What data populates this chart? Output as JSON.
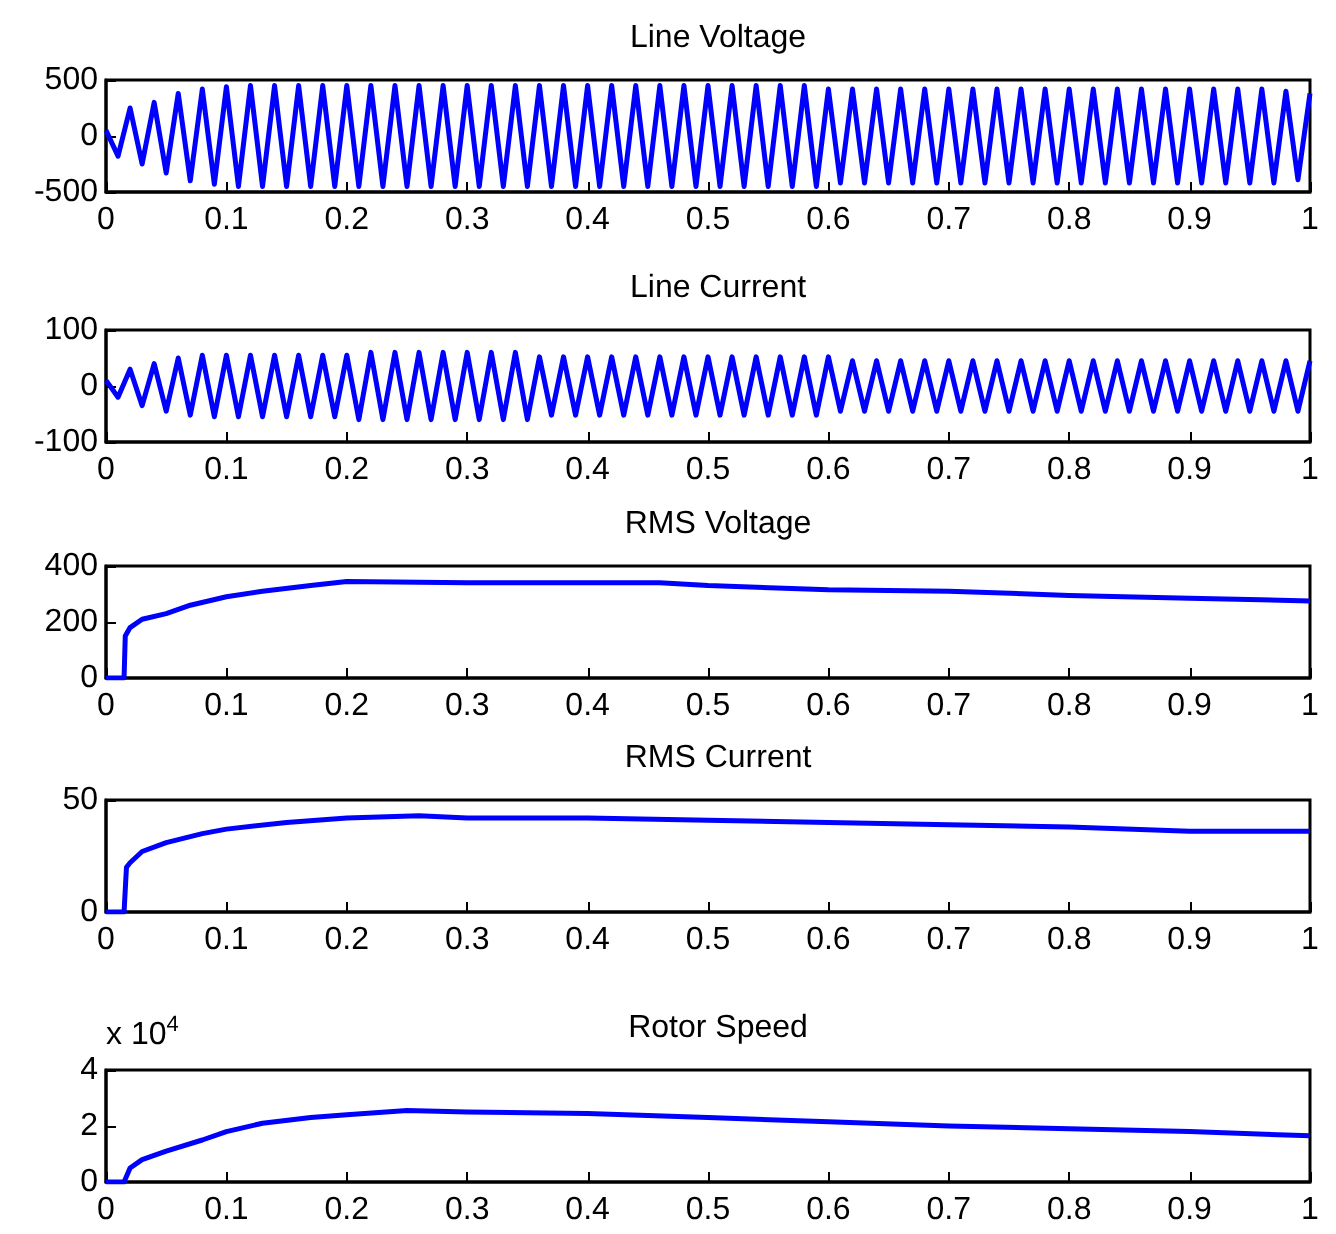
{
  "chart_data": [
    {
      "type": "line",
      "title": "Line Voltage",
      "color": "#0000ff",
      "xlim": [
        0,
        1
      ],
      "xticks": [
        0,
        0.1,
        0.2,
        0.3,
        0.4,
        0.5,
        0.6,
        0.7,
        0.8,
        0.9,
        1
      ],
      "ylim": [
        -500,
        500
      ],
      "yticks": [
        -500,
        0,
        500
      ],
      "x": [
        0,
        0.01,
        0.02,
        0.03,
        0.04,
        0.05,
        0.06,
        0.07,
        0.08,
        0.09,
        0.1,
        0.11,
        0.12,
        0.13,
        0.14,
        0.15,
        0.16,
        0.17,
        0.18,
        0.19,
        0.2,
        0.21,
        0.22,
        0.23,
        0.24,
        0.25,
        0.26,
        0.27,
        0.28,
        0.29,
        0.3,
        0.31,
        0.32,
        0.33,
        0.34,
        0.35,
        0.36,
        0.37,
        0.38,
        0.39,
        0.4,
        0.41,
        0.42,
        0.43,
        0.44,
        0.45,
        0.46,
        0.47,
        0.48,
        0.49,
        0.5,
        0.51,
        0.52,
        0.53,
        0.54,
        0.55,
        0.56,
        0.57,
        0.58,
        0.59,
        0.6,
        0.61,
        0.62,
        0.63,
        0.64,
        0.65,
        0.66,
        0.67,
        0.68,
        0.69,
        0.7,
        0.71,
        0.72,
        0.73,
        0.74,
        0.75,
        0.76,
        0.77,
        0.78,
        0.79,
        0.8,
        0.81,
        0.82,
        0.83,
        0.84,
        0.85,
        0.86,
        0.87,
        0.88,
        0.89,
        0.9,
        0.91,
        0.92,
        0.93,
        0.94,
        0.95,
        0.96,
        0.97,
        0.98,
        0.99,
        1
      ],
      "values": [
        50,
        -180,
        250,
        -250,
        300,
        -330,
        380,
        -400,
        420,
        -430,
        440,
        -450,
        450,
        -450,
        450,
        -450,
        450,
        -450,
        450,
        -450,
        450,
        -450,
        450,
        -450,
        450,
        -450,
        450,
        -450,
        450,
        -450,
        450,
        -450,
        450,
        -450,
        450,
        -450,
        450,
        -450,
        450,
        -450,
        450,
        -450,
        450,
        -450,
        450,
        -450,
        450,
        -450,
        450,
        -450,
        450,
        -450,
        450,
        -450,
        450,
        -450,
        450,
        -450,
        450,
        -450,
        420,
        -420,
        420,
        -420,
        420,
        -420,
        420,
        -420,
        420,
        -420,
        420,
        -420,
        420,
        -420,
        420,
        -420,
        420,
        -420,
        420,
        -420,
        420,
        -420,
        420,
        -420,
        420,
        -420,
        420,
        -420,
        420,
        -420,
        420,
        -420,
        420,
        -420,
        420,
        -420,
        420,
        -420,
        400,
        -390,
        380
      ]
    },
    {
      "type": "line",
      "title": "Line Current",
      "color": "#0000ff",
      "xlim": [
        0,
        1
      ],
      "xticks": [
        0,
        0.1,
        0.2,
        0.3,
        0.4,
        0.5,
        0.6,
        0.7,
        0.8,
        0.9,
        1
      ],
      "ylim": [
        -100,
        100
      ],
      "yticks": [
        -100,
        0,
        100
      ],
      "x": [
        0,
        0.01,
        0.02,
        0.03,
        0.04,
        0.05,
        0.06,
        0.07,
        0.08,
        0.09,
        0.1,
        0.11,
        0.12,
        0.13,
        0.14,
        0.15,
        0.16,
        0.17,
        0.18,
        0.19,
        0.2,
        0.21,
        0.22,
        0.23,
        0.24,
        0.25,
        0.26,
        0.27,
        0.28,
        0.29,
        0.3,
        0.31,
        0.32,
        0.33,
        0.34,
        0.35,
        0.36,
        0.37,
        0.38,
        0.39,
        0.4,
        0.41,
        0.42,
        0.43,
        0.44,
        0.45,
        0.46,
        0.47,
        0.48,
        0.49,
        0.5,
        0.51,
        0.52,
        0.53,
        0.54,
        0.55,
        0.56,
        0.57,
        0.58,
        0.59,
        0.6,
        0.61,
        0.62,
        0.63,
        0.64,
        0.65,
        0.66,
        0.67,
        0.68,
        0.69,
        0.7,
        0.71,
        0.72,
        0.73,
        0.74,
        0.75,
        0.76,
        0.77,
        0.78,
        0.79,
        0.8,
        0.81,
        0.82,
        0.83,
        0.84,
        0.85,
        0.86,
        0.87,
        0.88,
        0.89,
        0.9,
        0.91,
        0.92,
        0.93,
        0.94,
        0.95,
        0.96,
        0.97,
        0.98,
        0.99,
        1
      ],
      "values": [
        10,
        -20,
        30,
        -35,
        40,
        -45,
        50,
        -52,
        55,
        -55,
        55,
        -55,
        55,
        -55,
        55,
        -55,
        55,
        -55,
        55,
        -55,
        55,
        -60,
        60,
        -60,
        60,
        -60,
        60,
        -60,
        60,
        -60,
        60,
        -60,
        60,
        -60,
        60,
        -60,
        52,
        -52,
        52,
        -52,
        52,
        -52,
        52,
        -52,
        52,
        -52,
        52,
        -52,
        52,
        -52,
        52,
        -52,
        52,
        -52,
        52,
        -52,
        52,
        -52,
        52,
        -52,
        52,
        -45,
        45,
        -45,
        45,
        -45,
        45,
        -45,
        45,
        -45,
        45,
        -45,
        45,
        -45,
        45,
        -45,
        45,
        -45,
        45,
        -45,
        45,
        -45,
        45,
        -45,
        45,
        -45,
        45,
        -45,
        45,
        -45,
        45,
        -45,
        45,
        -45,
        45,
        -45,
        45,
        -45,
        45,
        -45,
        45
      ]
    },
    {
      "type": "line",
      "title": "RMS Voltage",
      "color": "#0000ff",
      "xlim": [
        0,
        1
      ],
      "xticks": [
        0,
        0.1,
        0.2,
        0.3,
        0.4,
        0.5,
        0.6,
        0.7,
        0.8,
        0.9,
        1
      ],
      "ylim": [
        0,
        400
      ],
      "yticks": [
        0,
        200,
        400
      ],
      "x": [
        0,
        0.015,
        0.016,
        0.02,
        0.03,
        0.05,
        0.07,
        0.1,
        0.13,
        0.17,
        0.2,
        0.3,
        0.4,
        0.46,
        0.5,
        0.6,
        0.7,
        0.8,
        0.9,
        1
      ],
      "values": [
        0,
        0,
        150,
        180,
        210,
        230,
        260,
        290,
        310,
        330,
        345,
        340,
        340,
        340,
        330,
        315,
        310,
        295,
        285,
        275
      ]
    },
    {
      "type": "line",
      "title": "RMS Current",
      "color": "#0000ff",
      "xlim": [
        0,
        1
      ],
      "xticks": [
        0,
        0.1,
        0.2,
        0.3,
        0.4,
        0.5,
        0.6,
        0.7,
        0.8,
        0.9,
        1
      ],
      "ylim": [
        0,
        50
      ],
      "yticks": [
        0,
        50
      ],
      "x": [
        0,
        0.015,
        0.017,
        0.02,
        0.03,
        0.05,
        0.08,
        0.1,
        0.15,
        0.2,
        0.26,
        0.3,
        0.4,
        0.5,
        0.6,
        0.7,
        0.8,
        0.9,
        1
      ],
      "values": [
        0,
        0,
        20,
        22,
        27,
        31,
        35,
        37,
        40,
        42,
        43,
        42,
        42,
        41,
        40,
        39,
        38,
        36,
        36
      ]
    },
    {
      "type": "line",
      "title": "Rotor Speed",
      "color": "#0000ff",
      "xlim": [
        0,
        1
      ],
      "xticks": [
        0,
        0.1,
        0.2,
        0.3,
        0.4,
        0.5,
        0.6,
        0.7,
        0.8,
        0.9,
        1
      ],
      "ylim": [
        0,
        4
      ],
      "yticks": [
        0,
        2,
        4
      ],
      "annotations": [
        "x 10$^{4}$"
      ],
      "x": [
        0,
        0.015,
        0.02,
        0.03,
        0.05,
        0.08,
        0.1,
        0.13,
        0.17,
        0.2,
        0.25,
        0.3,
        0.4,
        0.5,
        0.6,
        0.7,
        0.8,
        0.9,
        1
      ],
      "values": [
        0,
        0,
        0.5,
        0.8,
        1.1,
        1.5,
        1.8,
        2.1,
        2.3,
        2.4,
        2.55,
        2.5,
        2.45,
        2.3,
        2.15,
        2,
        1.9,
        1.8,
        1.65
      ]
    }
  ]
}
